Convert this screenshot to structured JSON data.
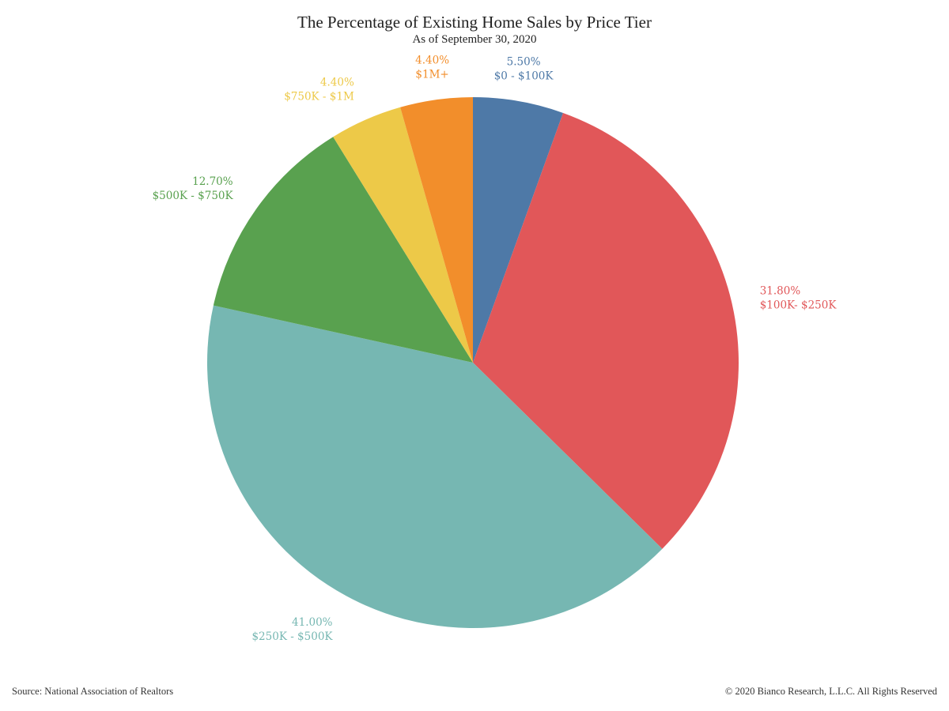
{
  "chart_data": {
    "type": "pie",
    "title": "The Percentage of Existing Home Sales by Price Tier",
    "subtitle": "As of September 30, 2020",
    "slices": [
      {
        "label": "$0 - $100K",
        "value": 5.5,
        "value_label": "5.50%",
        "color": "#4e79a7"
      },
      {
        "label": "$100K- $250K",
        "value": 31.8,
        "value_label": "31.80%",
        "color": "#e15759"
      },
      {
        "label": "$250K - $500K",
        "value": 41.0,
        "value_label": "41.00%",
        "color": "#76b7b2"
      },
      {
        "label": "$500K - $750K",
        "value": 12.7,
        "value_label": "12.70%",
        "color": "#59a14f"
      },
      {
        "label": "$750K - $1M",
        "value": 4.4,
        "value_label": "4.40%",
        "color": "#edc948"
      },
      {
        "label": "$1M+",
        "value": 4.4,
        "value_label": "4.40%",
        "color": "#f28e2b"
      }
    ],
    "direction": "clockwise",
    "start": "top"
  },
  "footer": {
    "source": "Source: National Association of Realtors",
    "copyright": "© 2020 Bianco Research, L.L.C. All Rights Reserved"
  }
}
